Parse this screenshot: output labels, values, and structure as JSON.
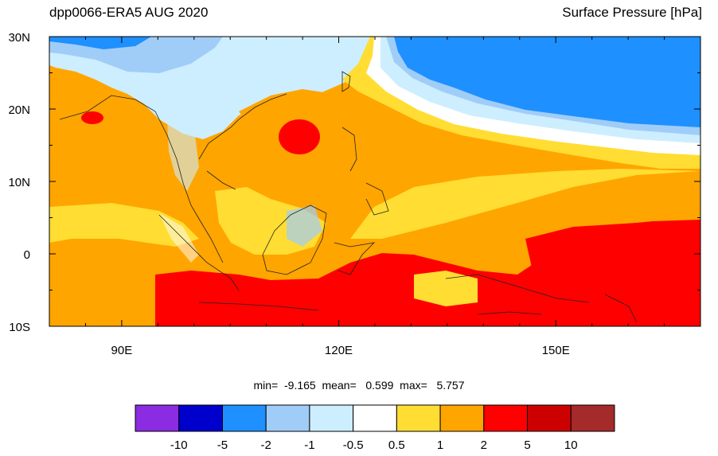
{
  "header": {
    "title": "dpp0066-ERA5 AUG 2020",
    "variable": "Surface Pressure [hPa]"
  },
  "map": {
    "lat_labels": [
      "30N",
      "20N",
      "10N",
      "0",
      "10S"
    ],
    "lon_labels": [
      "90E",
      "120E",
      "150E"
    ],
    "lat_range": [
      -10,
      30
    ],
    "lon_range": [
      80,
      170
    ],
    "stats_text": "min=  -9.165  mean=   0.599  max=   5.757",
    "stats": {
      "min": -9.165,
      "mean": 0.599,
      "max": 5.757
    }
  },
  "colorbar": {
    "colors": [
      "#8b2be2",
      "#0000cd",
      "#1e90ff",
      "#a0cdf8",
      "#cdeeff",
      "#ffffff",
      "#ffdd33",
      "#ffa500",
      "#ff0000",
      "#cd0000",
      "#a52a2a"
    ],
    "labels": [
      "-10",
      "-5",
      "-2",
      "-1",
      "-0.5",
      "0.5",
      "1",
      "2",
      "5",
      "10"
    ]
  }
}
